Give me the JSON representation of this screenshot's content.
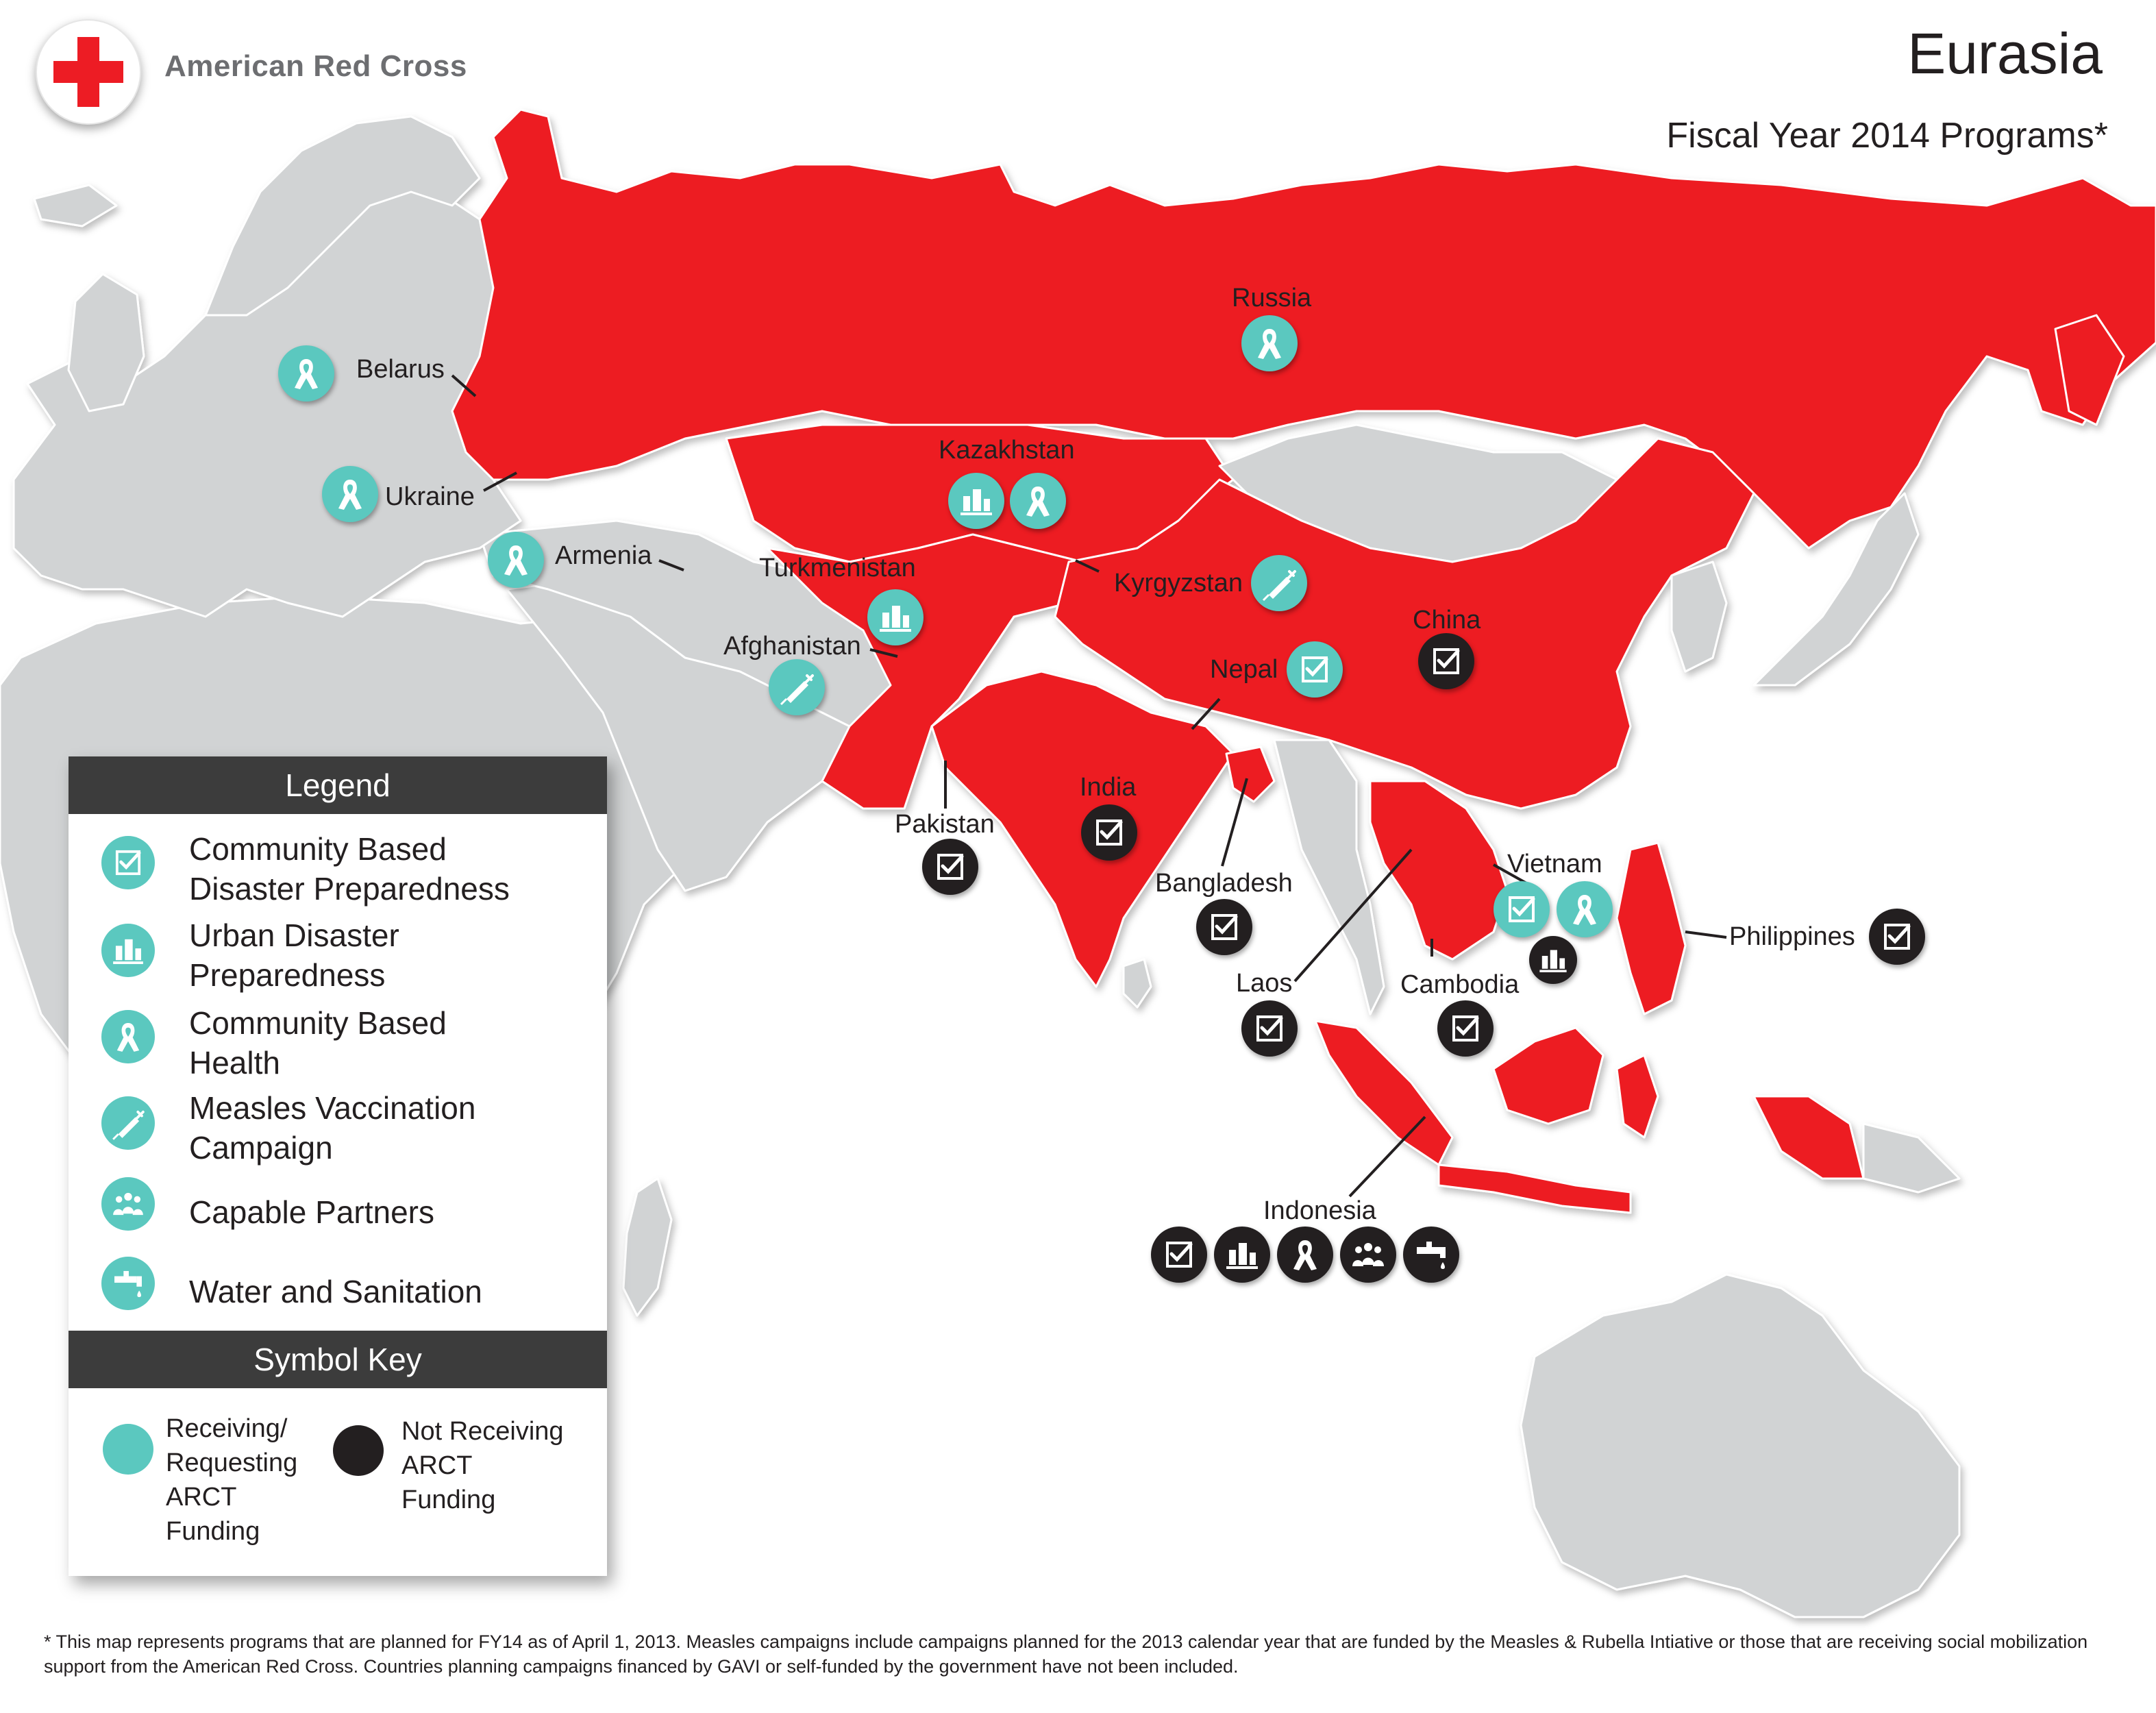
{
  "header": {
    "brand": "American Red Cross",
    "title": "Eurasia",
    "subtitle": "Fiscal Year 2014 Programs*"
  },
  "colors": {
    "program_country": "#ed1c24",
    "other_land": "#d1d3d4",
    "receiving": "#5bc8bf",
    "not_receiving": "#231f20"
  },
  "countries": {
    "russia": "Russia",
    "belarus": "Belarus",
    "ukraine": "Ukraine",
    "armenia": "Armenia",
    "kazakhstan": "Kazakhstan",
    "turkmenistan": "Turkmenistan",
    "kyrgyzstan": "Kyrgyzstan",
    "afghanistan": "Afghanistan",
    "nepal": "Nepal",
    "china": "China",
    "india": "India",
    "pakistan": "Pakistan",
    "bangladesh": "Bangladesh",
    "vietnam": "Vietnam",
    "philippines": "Philippines",
    "laos": "Laos",
    "cambodia": "Cambodia",
    "indonesia": "Indonesia"
  },
  "program_markers": [
    {
      "country": "Russia",
      "program": "health-icon",
      "status": "receiving"
    },
    {
      "country": "Belarus",
      "program": "health-icon",
      "status": "receiving"
    },
    {
      "country": "Ukraine",
      "program": "health-icon",
      "status": "receiving"
    },
    {
      "country": "Armenia",
      "program": "health-icon",
      "status": "receiving"
    },
    {
      "country": "Kazakhstan",
      "program": "urban-icon",
      "status": "receiving"
    },
    {
      "country": "Kazakhstan",
      "program": "health-icon",
      "status": "receiving"
    },
    {
      "country": "Turkmenistan",
      "program": "urban-icon",
      "status": "receiving"
    },
    {
      "country": "Kyrgyzstan",
      "program": "vaccine-icon",
      "status": "receiving"
    },
    {
      "country": "Afghanistan",
      "program": "vaccine-icon",
      "status": "receiving"
    },
    {
      "country": "Nepal",
      "program": "checklist-icon",
      "status": "receiving"
    },
    {
      "country": "China",
      "program": "checklist-icon",
      "status": "not_receiving"
    },
    {
      "country": "India",
      "program": "checklist-icon",
      "status": "not_receiving"
    },
    {
      "country": "Pakistan",
      "program": "checklist-icon",
      "status": "not_receiving"
    },
    {
      "country": "Bangladesh",
      "program": "checklist-icon",
      "status": "not_receiving"
    },
    {
      "country": "Vietnam",
      "program": "checklist-icon",
      "status": "receiving"
    },
    {
      "country": "Vietnam",
      "program": "health-icon",
      "status": "receiving"
    },
    {
      "country": "Vietnam",
      "program": "urban-icon",
      "status": "not_receiving"
    },
    {
      "country": "Philippines",
      "program": "checklist-icon",
      "status": "not_receiving"
    },
    {
      "country": "Laos",
      "program": "checklist-icon",
      "status": "not_receiving"
    },
    {
      "country": "Cambodia",
      "program": "checklist-icon",
      "status": "not_receiving"
    },
    {
      "country": "Indonesia",
      "program": "checklist-icon",
      "status": "not_receiving"
    },
    {
      "country": "Indonesia",
      "program": "urban-icon",
      "status": "not_receiving"
    },
    {
      "country": "Indonesia",
      "program": "health-icon",
      "status": "not_receiving"
    },
    {
      "country": "Indonesia",
      "program": "partners-icon",
      "status": "not_receiving"
    },
    {
      "country": "Indonesia",
      "program": "water-icon",
      "status": "not_receiving"
    }
  ],
  "legend": {
    "title": "Legend",
    "items": [
      {
        "label": "Community Based\nDisaster Preparedness",
        "icon": "checklist-icon"
      },
      {
        "label": "Urban Disaster\nPreparedness",
        "icon": "urban-icon"
      },
      {
        "label": "Community Based\nHealth",
        "icon": "health-icon"
      },
      {
        "label": "Measles Vaccination\nCampaign",
        "icon": "vaccine-icon"
      },
      {
        "label": "Capable Partners",
        "icon": "partners-icon"
      },
      {
        "label": "Water and Sanitation",
        "icon": "water-icon"
      }
    ]
  },
  "symbol_key": {
    "title": "Symbol Key",
    "receiving": "Receiving/\nRequesting\nARCT\nFunding",
    "not_receiving": "Not Receiving\nARCT\nFunding"
  },
  "footnote": "* This map represents programs that are planned for FY14 as of April 1, 2013. Measles campaigns include campaigns planned for the 2013 calendar year that are funded by the Measles & Rubella Intiative or those that are receiving social mobilization support from the American Red Cross. Countries planning campaigns financed by GAVI or self-funded by the government have not been included."
}
